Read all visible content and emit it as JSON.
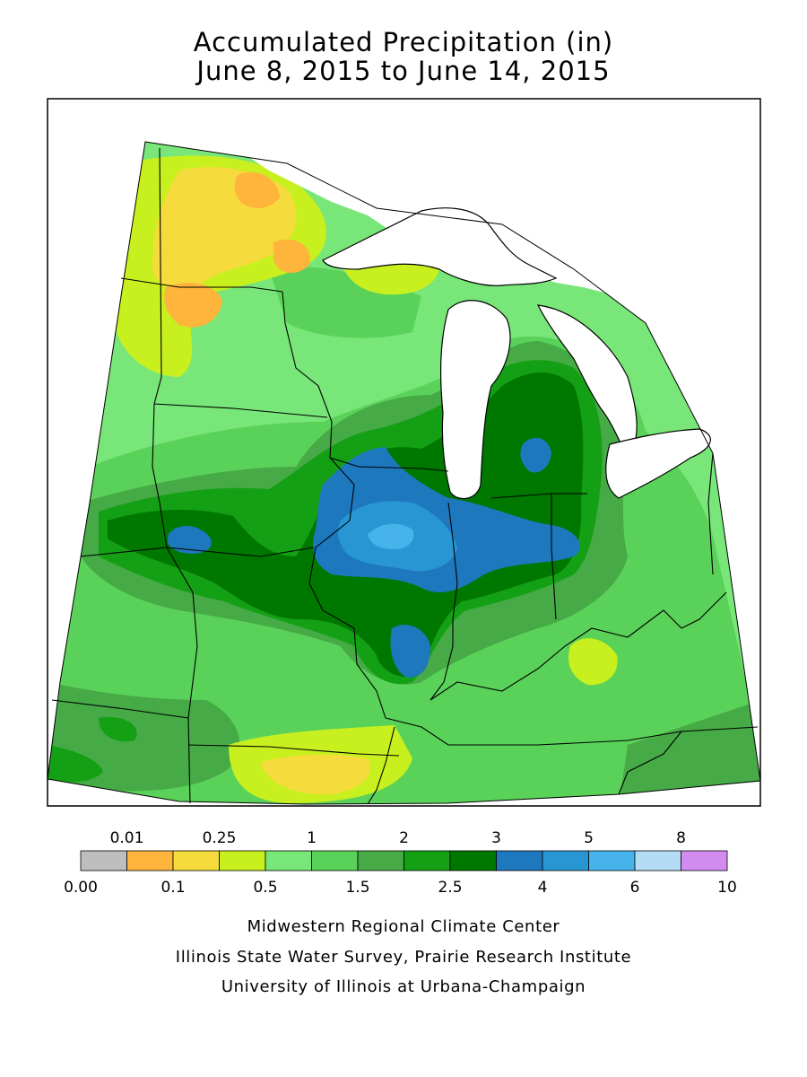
{
  "title": {
    "line1": "Accumulated Precipitation (in)",
    "line2": "June 8, 2015 to June 14, 2015"
  },
  "legend": {
    "upper_labels": [
      "0.01",
      "0.25",
      "1",
      "2",
      "3",
      "5",
      "8"
    ],
    "lower_labels": [
      "0.00",
      "0.1",
      "0.5",
      "1.5",
      "2.5",
      "4",
      "6",
      "10"
    ],
    "bins": [
      {
        "min": 0.0,
        "max": 0.01,
        "color": "#bebebe"
      },
      {
        "min": 0.01,
        "max": 0.1,
        "color": "#ffb43c"
      },
      {
        "min": 0.1,
        "max": 0.25,
        "color": "#f5dc3c"
      },
      {
        "min": 0.25,
        "max": 0.5,
        "color": "#c8f01e"
      },
      {
        "min": 0.5,
        "max": 1,
        "color": "#78e678"
      },
      {
        "min": 1,
        "max": 1.5,
        "color": "#5ad25a"
      },
      {
        "min": 1.5,
        "max": 2,
        "color": "#46aa46"
      },
      {
        "min": 2,
        "max": 2.5,
        "color": "#14a014"
      },
      {
        "min": 2.5,
        "max": 3,
        "color": "#007800"
      },
      {
        "min": 3,
        "max": 4,
        "color": "#1e78be"
      },
      {
        "min": 4,
        "max": 5,
        "color": "#2896d2"
      },
      {
        "min": 5,
        "max": 6,
        "color": "#46b4eb"
      },
      {
        "min": 6,
        "max": 8,
        "color": "#b4dcf5"
      },
      {
        "min": 8,
        "max": 10,
        "color": "#d28cf0"
      }
    ]
  },
  "credits": [
    "Midwestern Regional Climate Center",
    "Illinois State Water Survey, Prairie Research Institute",
    "University of Illinois at Urbana-Champaign"
  ]
}
